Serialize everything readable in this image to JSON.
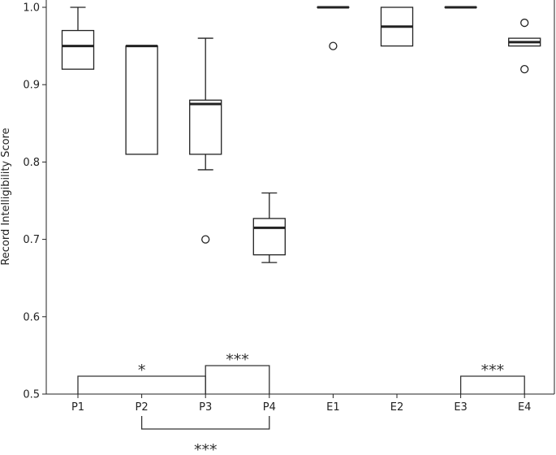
{
  "chart_data": {
    "type": "box",
    "ylabel": "Record Intelligibility Score",
    "ylim": [
      0.5,
      1.0
    ],
    "yticks": [
      0.5,
      0.6,
      0.7,
      0.8,
      0.9,
      1.0
    ],
    "ytick_labels": [
      "0.5",
      "0.6",
      "0.7",
      "0.8",
      "0.9",
      "1.0"
    ],
    "categories": [
      "P1",
      "P2",
      "P3",
      "P4",
      "E1",
      "E2",
      "E3",
      "E4"
    ],
    "boxes": [
      {
        "label": "P1",
        "whisker_low": 0.92,
        "q1": 0.92,
        "median": 0.95,
        "q3": 0.97,
        "whisker_high": 1.0,
        "outliers": []
      },
      {
        "label": "P2",
        "whisker_low": 0.81,
        "q1": 0.81,
        "median": 0.95,
        "q3": 0.95,
        "whisker_high": 0.95,
        "outliers": []
      },
      {
        "label": "P3",
        "whisker_low": 0.79,
        "q1": 0.81,
        "median": 0.875,
        "q3": 0.88,
        "whisker_high": 0.96,
        "outliers": [
          0.7
        ]
      },
      {
        "label": "P4",
        "whisker_low": 0.67,
        "q1": 0.68,
        "median": 0.715,
        "q3": 0.727,
        "whisker_high": 0.76,
        "outliers": []
      },
      {
        "label": "E1",
        "whisker_low": 1.0,
        "q1": 1.0,
        "median": 1.0,
        "q3": 1.0,
        "whisker_high": 1.0,
        "outliers": [
          0.95
        ]
      },
      {
        "label": "E2",
        "whisker_low": 0.95,
        "q1": 0.95,
        "median": 0.975,
        "q3": 1.0,
        "whisker_high": 1.0,
        "outliers": []
      },
      {
        "label": "E3",
        "whisker_low": 1.0,
        "q1": 1.0,
        "median": 1.0,
        "q3": 1.0,
        "whisker_high": 1.0,
        "outliers": []
      },
      {
        "label": "E4",
        "whisker_low": 0.95,
        "q1": 0.95,
        "median": 0.955,
        "q3": 0.96,
        "whisker_high": 0.96,
        "outliers": [
          0.98,
          0.92
        ]
      }
    ],
    "significance": [
      {
        "from": "P1",
        "to": "P3",
        "label": "*",
        "position": "above-axis",
        "level": 1
      },
      {
        "from": "P3",
        "to": "P4",
        "label": "***",
        "position": "above-axis",
        "level": 2
      },
      {
        "from": "E3",
        "to": "E4",
        "label": "***",
        "position": "above-axis",
        "level": 1
      },
      {
        "from": "P2",
        "to": "P4",
        "label": "***",
        "position": "below-axis",
        "level": 1
      }
    ],
    "grid": false,
    "colors": {
      "box_edge": "#222222",
      "median": "#222222",
      "background": "#ffffff",
      "bracket": "#333333"
    }
  }
}
